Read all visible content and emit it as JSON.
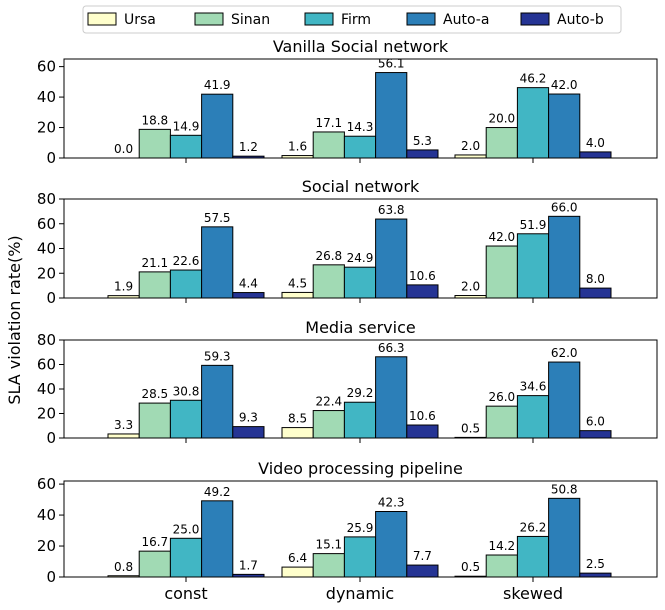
{
  "chart_data": {
    "type": "bar",
    "ylabel": "SLA violation rate(%)",
    "categories": [
      "const",
      "dynamic",
      "skewed"
    ],
    "legend": {
      "placement": "top",
      "entries": [
        "Ursa",
        "Sinan",
        "Firm",
        "Auto-a",
        "Auto-b"
      ]
    },
    "series_colors": [
      "#ffffcc",
      "#a1dab4",
      "#41b6c4",
      "#2c7fb8",
      "#253494"
    ],
    "panels": [
      {
        "title": "Vanilla Social network",
        "ylim": [
          0,
          65
        ],
        "yticks": [
          0,
          20,
          40,
          60
        ],
        "series": [
          {
            "name": "Ursa",
            "values": [
              0.0,
              1.6,
              2.0
            ]
          },
          {
            "name": "Sinan",
            "values": [
              18.8,
              17.1,
              20.0
            ]
          },
          {
            "name": "Firm",
            "values": [
              14.9,
              14.3,
              46.2
            ]
          },
          {
            "name": "Auto-a",
            "values": [
              41.9,
              56.1,
              42.0
            ]
          },
          {
            "name": "Auto-b",
            "values": [
              1.2,
              5.3,
              4.0
            ]
          }
        ]
      },
      {
        "title": "Social network",
        "ylim": [
          0,
          80
        ],
        "yticks": [
          0,
          20,
          40,
          60,
          80
        ],
        "series": [
          {
            "name": "Ursa",
            "values": [
              1.9,
              4.5,
              2.0
            ]
          },
          {
            "name": "Sinan",
            "values": [
              21.1,
              26.8,
              42.0
            ]
          },
          {
            "name": "Firm",
            "values": [
              22.6,
              24.9,
              51.9
            ]
          },
          {
            "name": "Auto-a",
            "values": [
              57.5,
              63.8,
              66.0
            ]
          },
          {
            "name": "Auto-b",
            "values": [
              4.4,
              10.6,
              8.0
            ]
          }
        ]
      },
      {
        "title": "Media service",
        "ylim": [
          0,
          80
        ],
        "yticks": [
          0,
          20,
          40,
          60,
          80
        ],
        "series": [
          {
            "name": "Ursa",
            "values": [
              3.3,
              8.5,
              0.5
            ]
          },
          {
            "name": "Sinan",
            "values": [
              28.5,
              22.4,
              26.0
            ]
          },
          {
            "name": "Firm",
            "values": [
              30.8,
              29.2,
              34.6
            ]
          },
          {
            "name": "Auto-a",
            "values": [
              59.3,
              66.3,
              62.0
            ]
          },
          {
            "name": "Auto-b",
            "values": [
              9.3,
              10.6,
              6.0
            ]
          }
        ]
      },
      {
        "title": "Video processing pipeline",
        "ylim": [
          0,
          62
        ],
        "yticks": [
          0,
          20,
          40,
          60
        ],
        "series": [
          {
            "name": "Ursa",
            "values": [
              0.8,
              6.4,
              0.5
            ]
          },
          {
            "name": "Sinan",
            "values": [
              16.7,
              15.1,
              14.2
            ]
          },
          {
            "name": "Firm",
            "values": [
              25.0,
              25.9,
              26.2
            ]
          },
          {
            "name": "Auto-a",
            "values": [
              49.2,
              42.3,
              50.8
            ]
          },
          {
            "name": "Auto-b",
            "values": [
              1.7,
              7.7,
              2.5
            ]
          }
        ]
      }
    ]
  }
}
